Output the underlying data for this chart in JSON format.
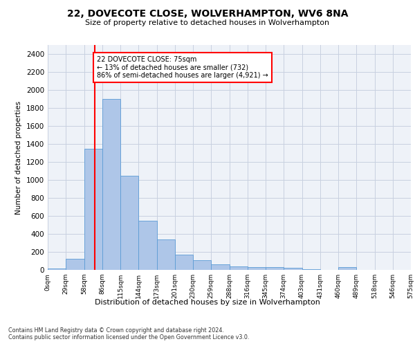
{
  "title_line1": "22, DOVECOTE CLOSE, WOLVERHAMPTON, WV6 8NA",
  "title_line2": "Size of property relative to detached houses in Wolverhampton",
  "xlabel": "Distribution of detached houses by size in Wolverhampton",
  "ylabel": "Number of detached properties",
  "bar_values": [
    15,
    125,
    1345,
    1900,
    1045,
    545,
    335,
    170,
    110,
    65,
    40,
    30,
    28,
    22,
    5,
    2,
    27,
    2,
    2,
    2
  ],
  "bin_labels": [
    "0sqm",
    "29sqm",
    "58sqm",
    "86sqm",
    "115sqm",
    "144sqm",
    "173sqm",
    "201sqm",
    "230sqm",
    "259sqm",
    "288sqm",
    "316sqm",
    "345sqm",
    "374sqm",
    "403sqm",
    "431sqm",
    "460sqm",
    "489sqm",
    "518sqm",
    "546sqm",
    "575sqm"
  ],
  "bar_color": "#aec6e8",
  "bar_edge_color": "#5b9bd5",
  "vline_color": "red",
  "annotation_text": "22 DOVECOTE CLOSE: 75sqm\n← 13% of detached houses are smaller (732)\n86% of semi-detached houses are larger (4,921) →",
  "annotation_box_color": "white",
  "annotation_box_edge_color": "red",
  "ylim": [
    0,
    2500
  ],
  "yticks": [
    0,
    200,
    400,
    600,
    800,
    1000,
    1200,
    1400,
    1600,
    1800,
    2000,
    2200,
    2400
  ],
  "footnote": "Contains HM Land Registry data © Crown copyright and database right 2024.\nContains public sector information licensed under the Open Government Licence v3.0.",
  "bg_color": "#eef2f8",
  "grid_color": "#c8d0e0"
}
